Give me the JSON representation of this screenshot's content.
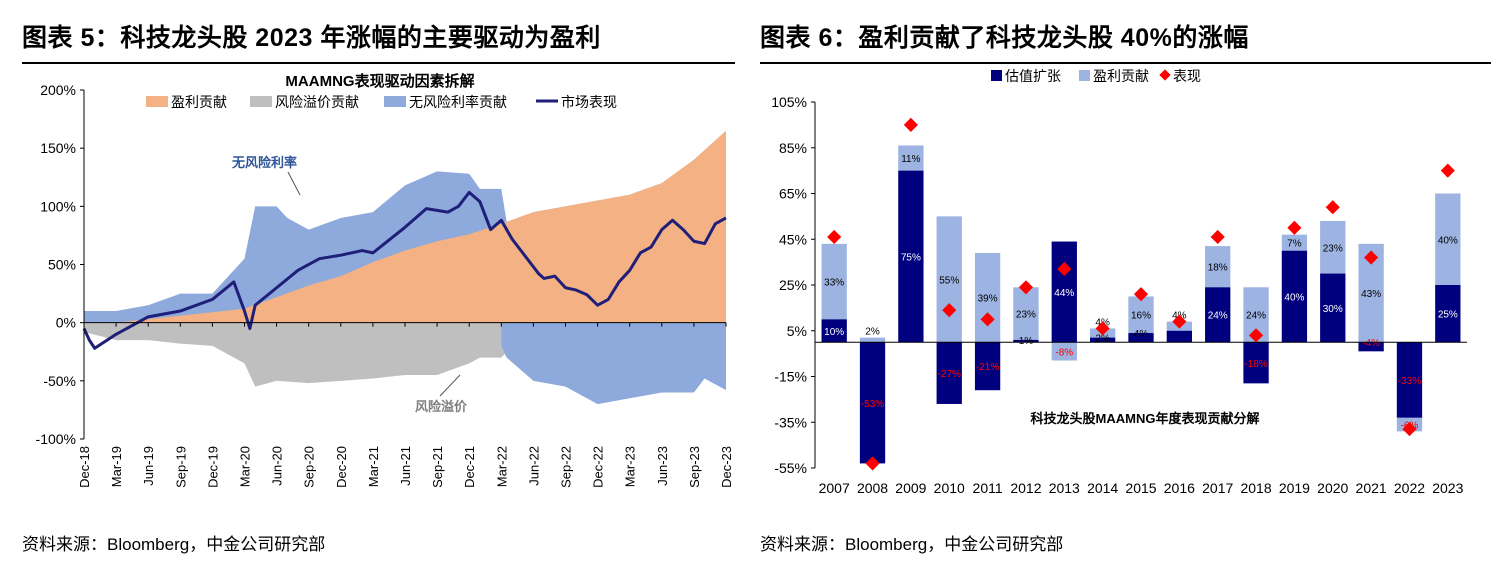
{
  "figure5": {
    "heading": "图表 5：科技龙头股 2023 年涨幅的主要驱动为盈利",
    "source": "资料来源：Bloomberg，中金公司研究部"
  },
  "figure6": {
    "heading": "图表 6：盈利贡献了科技龙头股 40%的涨幅",
    "source": "资料来源：Bloomberg，中金公司研究部"
  },
  "chart_data": [
    {
      "type": "area",
      "title": "MAAMNG表现驱动因素拆解",
      "ylim": [
        -100,
        200
      ],
      "yticks": [
        -100,
        -50,
        0,
        50,
        100,
        150,
        200
      ],
      "ytick_labels": [
        "-100%",
        "-50%",
        "0%",
        "50%",
        "100%",
        "150%",
        "200%"
      ],
      "x_range": [
        0,
        60
      ],
      "xticks": [
        0,
        3,
        6,
        9,
        12,
        15,
        18,
        21,
        24,
        27,
        30,
        33,
        36,
        39,
        42,
        45,
        48,
        51,
        54,
        57,
        60
      ],
      "xtick_labels": [
        "Dec-18",
        "Mar-19",
        "Jun-19",
        "Sep-19",
        "Dec-19",
        "Mar-20",
        "Jun-20",
        "Sep-20",
        "Dec-20",
        "Mar-21",
        "Jun-21",
        "Sep-21",
        "Dec-21",
        "Mar-22",
        "Jun-22",
        "Sep-22",
        "Dec-22",
        "Mar-23",
        "Jun-23",
        "Sep-23",
        "Dec-23"
      ],
      "grid": false,
      "legend_position": "top",
      "colors": {
        "earnings": "#F4B183",
        "risk_premium": "#BFBFBF",
        "riskfree": "#8EA9DB",
        "market": "#1F1F7A"
      },
      "series": [
        {
          "name": "盈利贡献",
          "kind": "area",
          "x": [
            0,
            3,
            6,
            9,
            12,
            15,
            18,
            21,
            24,
            27,
            30,
            33,
            36,
            39,
            42,
            45,
            48,
            51,
            54,
            57,
            60
          ],
          "values": [
            0,
            0,
            3,
            6,
            9,
            12,
            22,
            32,
            40,
            52,
            62,
            70,
            76,
            85,
            95,
            100,
            105,
            110,
            120,
            140,
            165
          ]
        },
        {
          "name": "风险溢价贡献",
          "kind": "area",
          "x": [
            0,
            3,
            6,
            9,
            12,
            15,
            16,
            18,
            21,
            24,
            27,
            30,
            33,
            36,
            37,
            39,
            40,
            42,
            45,
            48,
            51,
            54,
            57,
            58,
            60
          ],
          "values": [
            -8,
            -15,
            -15,
            -18,
            -20,
            -35,
            -55,
            -50,
            -52,
            -50,
            -48,
            -45,
            -45,
            -35,
            -30,
            -30,
            -20,
            -20,
            -25,
            -28,
            -18,
            -15,
            -10,
            0,
            0
          ]
        },
        {
          "name": "无风险利率贡献",
          "kind": "area",
          "x": [
            0,
            3,
            6,
            9,
            12,
            15,
            16,
            18,
            19,
            21,
            24,
            27,
            30,
            33,
            36,
            37,
            38,
            39,
            39.5,
            42,
            45,
            48,
            51,
            54,
            57,
            58,
            60
          ],
          "values": [
            10,
            10,
            15,
            25,
            25,
            55,
            100,
            100,
            90,
            80,
            90,
            95,
            118,
            130,
            128,
            115,
            115,
            115,
            0,
            0,
            0,
            0,
            0,
            0,
            0,
            0,
            0
          ],
          "negative_x": [
            39,
            39.5,
            42,
            45,
            48,
            51,
            54,
            57,
            58,
            60
          ],
          "negative_values": [
            -20,
            -30,
            -50,
            -55,
            -70,
            -65,
            -60,
            -60,
            -48,
            -58
          ]
        },
        {
          "name": "市场表现",
          "kind": "line",
          "x": [
            0,
            0.5,
            1,
            3,
            6,
            9,
            12,
            14,
            15,
            15.5,
            16,
            18,
            20,
            22,
            24,
            26,
            27,
            30,
            32,
            34,
            35,
            36,
            37,
            38,
            39,
            40,
            41,
            42,
            42.5,
            43,
            44,
            45,
            46,
            47,
            48,
            49,
            50,
            51,
            52,
            53,
            54,
            55,
            56,
            57,
            58,
            59,
            60
          ],
          "values": [
            -5,
            -15,
            -22,
            -10,
            5,
            10,
            20,
            35,
            10,
            -5,
            15,
            30,
            45,
            55,
            58,
            62,
            60,
            82,
            98,
            95,
            100,
            112,
            104,
            80,
            88,
            72,
            60,
            48,
            42,
            38,
            40,
            30,
            28,
            24,
            15,
            20,
            35,
            45,
            60,
            65,
            80,
            88,
            80,
            70,
            68,
            85,
            90
          ]
        }
      ],
      "annotations": [
        "无风险利率",
        "风险溢价"
      ]
    },
    {
      "type": "bar",
      "title": "科技龙头股MAAMNG年度表现贡献分解",
      "categories": [
        "2007",
        "2008",
        "2009",
        "2010",
        "2011",
        "2012",
        "2013",
        "2014",
        "2015",
        "2016",
        "2017",
        "2018",
        "2019",
        "2020",
        "2021",
        "2022",
        "2023"
      ],
      "ylim": [
        -55,
        105
      ],
      "yticks": [
        -55,
        -35,
        -15,
        5,
        25,
        45,
        65,
        85,
        105
      ],
      "ytick_labels": [
        "-55%",
        "-35%",
        "-15%",
        "5%",
        "25%",
        "45%",
        "65%",
        "85%",
        "105%"
      ],
      "legend_position": "top",
      "colors": {
        "valuation": "#00007E",
        "earnings": "#9DB3E1",
        "performance": "#FF0000"
      },
      "series": [
        {
          "name": "估值扩张",
          "kind": "bar",
          "values": [
            10,
            -53,
            75,
            -27,
            -21,
            1,
            44,
            2,
            4,
            5,
            24,
            -18,
            40,
            30,
            -4,
            -33,
            25
          ],
          "labels": [
            "10%",
            "-53%",
            "75%",
            "-27%",
            "-21%",
            "1%",
            "44%",
            "2%",
            "4%",
            "",
            "24%",
            "-18%",
            "40%",
            "30%",
            "-4%",
            "-33%",
            "25%"
          ]
        },
        {
          "name": "盈利贡献",
          "kind": "bar",
          "values": [
            33,
            2,
            11,
            55,
            39,
            23,
            -8,
            4,
            16,
            4,
            18,
            24,
            7,
            23,
            43,
            -6,
            40
          ],
          "labels": [
            "33%",
            "2%",
            "11%",
            "55%",
            "39%",
            "23%",
            "-8%",
            "4%",
            "16%",
            "4%",
            "18%",
            "24%",
            "7%",
            "23%",
            "43%",
            "-6%",
            "40%"
          ]
        },
        {
          "name": "表现",
          "kind": "marker",
          "values": [
            46,
            -53,
            95,
            14,
            10,
            24,
            32,
            6,
            21,
            9,
            46,
            3,
            50,
            59,
            37,
            -38,
            75
          ]
        }
      ]
    }
  ]
}
